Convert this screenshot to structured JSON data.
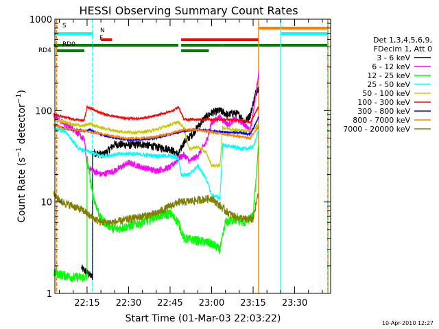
{
  "chart_data": {
    "type": "line",
    "title": "HESSI Observing Summary Count Rates",
    "xlabel": "Start Time (01-Mar-03 22:03:22)",
    "ylabel": "Count Rate (s⁻¹ detector⁻¹)",
    "y_scale": "log",
    "ylim": [
      1,
      1000
    ],
    "xlim": [
      "22:03:22",
      "23:43:00"
    ],
    "x_ticks": [
      "22:15",
      "22:30",
      "22:45",
      "23:00",
      "23:15",
      "23:30"
    ],
    "y_ticks": [
      "1",
      "10",
      "100",
      "1000"
    ],
    "grid": false,
    "legend_position": "right",
    "legend_header": [
      "Det 1,3,4,5,6,9,",
      "FDecim 1, Att 0"
    ],
    "timestamp": "10-Apr-2010 12:27",
    "flag_labels": [
      "S",
      "N",
      "F",
      "RD0",
      "RD4"
    ],
    "flags": [
      {
        "label": "S",
        "color": "#ff8000",
        "segments": [
          [
            "23:17",
            "23:42"
          ]
        ]
      },
      {
        "label": "N",
        "color": "#00ffff",
        "segments": [
          [
            "22:03",
            "22:17"
          ],
          [
            "23:25",
            "23:42"
          ]
        ]
      },
      {
        "label": "F",
        "color": "#ff0000",
        "segments": [
          [
            "22:20",
            "22:24"
          ],
          [
            "22:49",
            "23:17"
          ]
        ]
      },
      {
        "label": "RD0",
        "color": "#008000",
        "segments": [
          [
            "22:03",
            "22:48"
          ],
          [
            "22:49",
            "23:04"
          ],
          [
            "23:04",
            "23:42"
          ]
        ]
      },
      {
        "label": "RD4",
        "color": "#008000",
        "segments": [
          [
            "22:04",
            "22:14"
          ],
          [
            "22:49",
            "22:59"
          ]
        ]
      }
    ],
    "vlines": [
      {
        "time": "22:04",
        "color": "#ff8000",
        "style": "dashed"
      },
      {
        "time": "22:17",
        "color": "#00ffff",
        "style": "dashed"
      },
      {
        "time": "23:17",
        "color": "#ff8000",
        "style": "solid"
      },
      {
        "time": "23:25",
        "color": "#00ffff",
        "style": "solid"
      },
      {
        "time": "23:42",
        "color": "#00ffff",
        "style": "solid"
      },
      {
        "time": "23:42",
        "color": "#ff8000",
        "style": "dashed"
      }
    ],
    "series": [
      {
        "name": "3 - 6 keV",
        "color": "#000000",
        "noise": 0.1,
        "gaps": [
          [
            "22:03",
            "22:13"
          ]
        ],
        "points": [
          [
            "22:13",
            1.9
          ],
          [
            "22:17",
            1.5
          ],
          [
            "22:17",
            35
          ],
          [
            "22:21",
            33
          ],
          [
            "22:25",
            43
          ],
          [
            "22:30",
            42
          ],
          [
            "22:35",
            43
          ],
          [
            "22:40",
            40
          ],
          [
            "22:45",
            38
          ],
          [
            "22:48",
            33
          ],
          [
            "22:50",
            45
          ],
          [
            "22:53",
            55
          ],
          [
            "22:57",
            80
          ],
          [
            "23:00",
            95
          ],
          [
            "23:03",
            100
          ],
          [
            "23:06",
            90
          ],
          [
            "23:08",
            95
          ],
          [
            "23:10",
            90
          ],
          [
            "23:12",
            75
          ],
          [
            "23:14",
            90
          ],
          [
            "23:16",
            160
          ],
          [
            "23:17",
            180
          ]
        ]
      },
      {
        "name": "6 - 12 keV",
        "color": "#ff00ff",
        "noise": 0.08,
        "points": [
          [
            "22:03",
            85
          ],
          [
            "22:06",
            75
          ],
          [
            "22:10",
            63
          ],
          [
            "22:14",
            48
          ],
          [
            "22:15",
            25
          ],
          [
            "22:17",
            22
          ],
          [
            "22:20",
            20
          ],
          [
            "22:25",
            22
          ],
          [
            "22:30",
            27
          ],
          [
            "22:35",
            24
          ],
          [
            "22:40",
            22
          ],
          [
            "22:45",
            24
          ],
          [
            "22:48",
            30
          ],
          [
            "22:50",
            33
          ],
          [
            "22:52",
            28
          ],
          [
            "22:55",
            32
          ],
          [
            "22:58",
            45
          ],
          [
            "23:00",
            75
          ],
          [
            "23:03",
            85
          ],
          [
            "23:06",
            70
          ],
          [
            "23:08",
            80
          ],
          [
            "23:11",
            75
          ],
          [
            "23:14",
            60
          ],
          [
            "23:16",
            150
          ],
          [
            "23:17",
            260
          ]
        ]
      },
      {
        "name": "12 - 25 keV",
        "color": "#00ff00",
        "noise": 0.12,
        "gaps": [
          [
            "22:17",
            "22:18"
          ]
        ],
        "points": [
          [
            "22:03",
            1.7
          ],
          [
            "22:06",
            1.6
          ],
          [
            "22:10",
            1.5
          ],
          [
            "22:15",
            1.5
          ],
          [
            "22:15",
            30
          ],
          [
            "22:17",
            12
          ],
          [
            "22:20",
            6.5
          ],
          [
            "22:25",
            5
          ],
          [
            "22:30",
            5.5
          ],
          [
            "22:35",
            6
          ],
          [
            "22:40",
            7
          ],
          [
            "22:45",
            7.5
          ],
          [
            "22:48",
            6
          ],
          [
            "22:50",
            4
          ],
          [
            "22:55",
            3.8
          ],
          [
            "23:00",
            3.5
          ],
          [
            "23:03",
            3
          ],
          [
            "23:05",
            6
          ],
          [
            "23:08",
            6.5
          ],
          [
            "23:12",
            6
          ],
          [
            "23:15",
            7
          ],
          [
            "23:17",
            45
          ]
        ]
      },
      {
        "name": "25 - 50 keV",
        "color": "#00ffff",
        "noise": 0.05,
        "gaps": [
          [
            "22:07",
            "22:12"
          ]
        ],
        "points": [
          [
            "22:03",
            65
          ],
          [
            "22:06",
            60
          ],
          [
            "22:07",
            60
          ],
          [
            "22:12",
            38
          ],
          [
            "22:15",
            36
          ],
          [
            "22:20",
            32
          ],
          [
            "22:25",
            33
          ],
          [
            "22:30",
            34
          ],
          [
            "22:35",
            33
          ],
          [
            "22:40",
            32
          ],
          [
            "22:45",
            32
          ],
          [
            "22:48",
            30
          ],
          [
            "22:49",
            20
          ],
          [
            "22:52",
            20
          ],
          [
            "22:55",
            25
          ],
          [
            "22:58",
            18
          ],
          [
            "23:00",
            12
          ],
          [
            "23:03",
            11
          ],
          [
            "23:04",
            42
          ],
          [
            "23:08",
            40
          ],
          [
            "23:12",
            38
          ],
          [
            "23:15",
            40
          ],
          [
            "23:17",
            60
          ]
        ]
      },
      {
        "name": "50 - 100 keV",
        "color": "#c8c800",
        "noise": 0.04,
        "points": [
          [
            "22:03",
            80
          ],
          [
            "22:07",
            75
          ],
          [
            "22:10",
            70
          ],
          [
            "22:14",
            68
          ],
          [
            "22:16",
            72
          ],
          [
            "22:20",
            65
          ],
          [
            "22:25",
            60
          ],
          [
            "22:30",
            58
          ],
          [
            "22:35",
            58
          ],
          [
            "22:40",
            62
          ],
          [
            "22:45",
            70
          ],
          [
            "22:48",
            75
          ],
          [
            "22:50",
            65
          ],
          [
            "22:52",
            38
          ],
          [
            "22:55",
            40
          ],
          [
            "22:58",
            35
          ],
          [
            "23:00",
            25
          ],
          [
            "23:03",
            25
          ],
          [
            "23:04",
            65
          ],
          [
            "23:08",
            62
          ],
          [
            "23:12",
            60
          ],
          [
            "23:15",
            62
          ],
          [
            "23:17",
            70
          ]
        ]
      },
      {
        "name": "100 - 300 keV",
        "color": "#ff0000",
        "noise": 0.03,
        "points": [
          [
            "22:03",
            90
          ],
          [
            "22:07",
            85
          ],
          [
            "22:10",
            80
          ],
          [
            "22:14",
            78
          ],
          [
            "22:15",
            110
          ],
          [
            "22:18",
            100
          ],
          [
            "22:22",
            90
          ],
          [
            "22:26",
            85
          ],
          [
            "22:30",
            82
          ],
          [
            "22:34",
            82
          ],
          [
            "22:38",
            85
          ],
          [
            "22:42",
            92
          ],
          [
            "22:46",
            100
          ],
          [
            "22:48",
            110
          ],
          [
            "22:50",
            80
          ],
          [
            "22:55",
            80
          ],
          [
            "23:00",
            80
          ],
          [
            "23:05",
            80
          ],
          [
            "23:10",
            78
          ],
          [
            "23:14",
            75
          ],
          [
            "23:17",
            110
          ]
        ]
      },
      {
        "name": "300 - 800 keV",
        "color": "#0000ff",
        "noise": 0.03,
        "points": [
          [
            "22:03",
            70
          ],
          [
            "22:06",
            65
          ],
          [
            "22:10",
            62
          ],
          [
            "22:14",
            60
          ],
          [
            "22:16",
            62
          ],
          [
            "22:20",
            55
          ],
          [
            "22:25",
            50
          ],
          [
            "22:30",
            48
          ],
          [
            "22:35",
            48
          ],
          [
            "22:40",
            50
          ],
          [
            "22:45",
            55
          ],
          [
            "22:48",
            58
          ],
          [
            "22:50",
            60
          ],
          [
            "22:55",
            62
          ],
          [
            "23:00",
            60
          ],
          [
            "23:05",
            58
          ],
          [
            "23:10",
            57
          ],
          [
            "23:14",
            55
          ],
          [
            "23:17",
            85
          ]
        ]
      },
      {
        "name": "800 - 7000 keV",
        "color": "#ff8000",
        "noise": 0.03,
        "points": [
          [
            "22:03",
            70
          ],
          [
            "22:06",
            65
          ],
          [
            "22:10",
            62
          ],
          [
            "22:14",
            60
          ],
          [
            "22:16",
            58
          ],
          [
            "22:20",
            56
          ],
          [
            "22:25",
            52
          ],
          [
            "22:30",
            50
          ],
          [
            "22:35",
            50
          ],
          [
            "22:40",
            52
          ],
          [
            "22:45",
            56
          ],
          [
            "22:48",
            60
          ],
          [
            "22:50",
            62
          ],
          [
            "22:55",
            62
          ],
          [
            "23:00",
            58
          ],
          [
            "23:05",
            55
          ],
          [
            "23:10",
            52
          ],
          [
            "23:14",
            50
          ],
          [
            "23:17",
            68
          ]
        ]
      },
      {
        "name": "7000 - 20000 keV",
        "color": "#808000",
        "noise": 0.1,
        "points": [
          [
            "22:03",
            12
          ],
          [
            "22:06",
            10
          ],
          [
            "22:10",
            9
          ],
          [
            "22:14",
            8
          ],
          [
            "22:16",
            7
          ],
          [
            "22:20",
            6
          ],
          [
            "22:25",
            6
          ],
          [
            "22:30",
            6.5
          ],
          [
            "22:35",
            7
          ],
          [
            "22:40",
            7.5
          ],
          [
            "22:45",
            9
          ],
          [
            "22:48",
            10
          ],
          [
            "22:50",
            10
          ],
          [
            "22:55",
            10.5
          ],
          [
            "23:00",
            11
          ],
          [
            "23:05",
            8
          ],
          [
            "23:08",
            7
          ],
          [
            "23:12",
            6.5
          ],
          [
            "23:15",
            6.5
          ],
          [
            "23:17",
            13
          ]
        ]
      }
    ]
  }
}
